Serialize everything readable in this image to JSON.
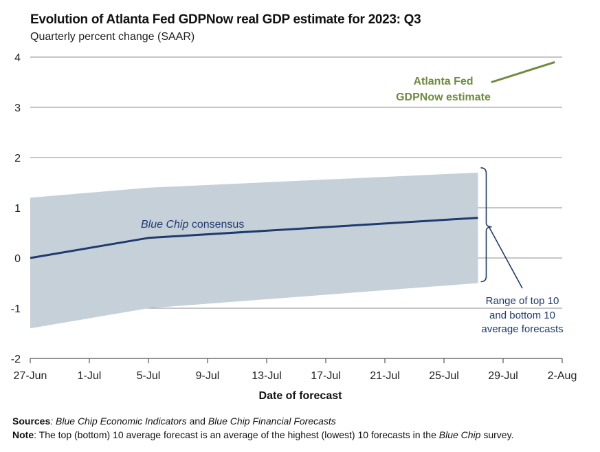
{
  "title": "Evolution of Atlanta Fed GDPNow real GDP estimate for 2023: Q3",
  "subtitle": "Quarterly percent change (SAAR)",
  "chart_data": {
    "type": "line",
    "title": "Evolution of Atlanta Fed GDPNow real GDP estimate for 2023: Q3",
    "ylabel": "Quarterly percent change (SAAR)",
    "xlabel": "Date of forecast",
    "ylim": [
      -2,
      4
    ],
    "yticks": [
      -2,
      -1,
      0,
      1,
      2,
      3,
      4
    ],
    "x_day_range": [
      0,
      36
    ],
    "xticks": [
      {
        "day": 0,
        "label": "27-Jun"
      },
      {
        "day": 4,
        "label": "1-Jul"
      },
      {
        "day": 8,
        "label": "5-Jul"
      },
      {
        "day": 12,
        "label": "9-Jul"
      },
      {
        "day": 16,
        "label": "13-Jul"
      },
      {
        "day": 20,
        "label": "17-Jul"
      },
      {
        "day": 24,
        "label": "21-Jul"
      },
      {
        "day": 28,
        "label": "25-Jul"
      },
      {
        "day": 32,
        "label": "29-Jul"
      },
      {
        "day": 36,
        "label": "2-Aug"
      }
    ],
    "grid": true,
    "series": [
      {
        "name": "Blue Chip consensus",
        "color": "#1f3a6e",
        "points": [
          [
            0,
            0.0
          ],
          [
            8,
            0.4
          ],
          [
            30.3,
            0.8
          ]
        ]
      },
      {
        "name": "Atlanta Fed GDPNow estimate",
        "color": "#6e8b3d",
        "points": [
          [
            31.2,
            3.5
          ],
          [
            35.5,
            3.9
          ]
        ]
      }
    ],
    "band": {
      "name": "Range of top 10 and bottom 10 average forecasts",
      "color": "#c5d0d9",
      "upper": [
        [
          0,
          1.2
        ],
        [
          8,
          1.4
        ],
        [
          30.3,
          1.7
        ]
      ],
      "lower": [
        [
          0,
          -1.4
        ],
        [
          8,
          -1.0
        ],
        [
          30.3,
          -0.5
        ]
      ]
    },
    "annotations": {
      "gdpnow_line1": "Atlanta Fed",
      "gdpnow_line2": "GDPNow estimate",
      "bluechip_italic": "Blue Chip",
      "bluechip_rest": " consensus",
      "range_line1": "Range of top 10",
      "range_line2": "and bottom 10",
      "range_line3": "average forecasts"
    }
  },
  "footer": {
    "sources_label": "Sources",
    "sources_source1": ": Blue Chip Economic Indicators",
    "sources_and": " and ",
    "sources_source2": "Blue Chip Financial Forecasts",
    "note_label": "Note",
    "note_text1": ": The top (bottom) 10 average forecast is an average of the highest (lowest) 10 forecasts in the ",
    "note_italic": "Blue Chip",
    "note_text2": " survey."
  }
}
